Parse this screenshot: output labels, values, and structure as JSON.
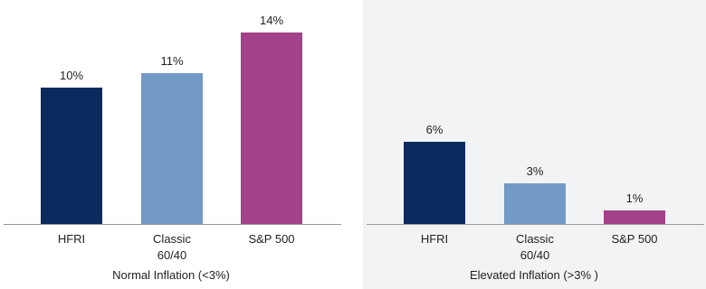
{
  "chart_data": [
    {
      "type": "bar",
      "xlabel": "Normal Inflation (<3%)",
      "categories": [
        "HFRI",
        "Classic 60/40",
        "S&P 500"
      ],
      "values": [
        10,
        11,
        14
      ],
      "value_labels": [
        "10%",
        "11%",
        "14%"
      ],
      "colors": [
        "#0b2b5f",
        "#7399c6",
        "#a3418a"
      ]
    },
    {
      "type": "bar",
      "xlabel": "Elevated Inflation (>3% )",
      "categories": [
        "HFRI",
        "Classic 60/40",
        "S&P 500"
      ],
      "values": [
        6,
        3,
        1
      ],
      "value_labels": [
        "6%",
        "3%",
        "1%"
      ],
      "colors": [
        "#0b2b5f",
        "#7399c6",
        "#a3418a"
      ]
    }
  ]
}
